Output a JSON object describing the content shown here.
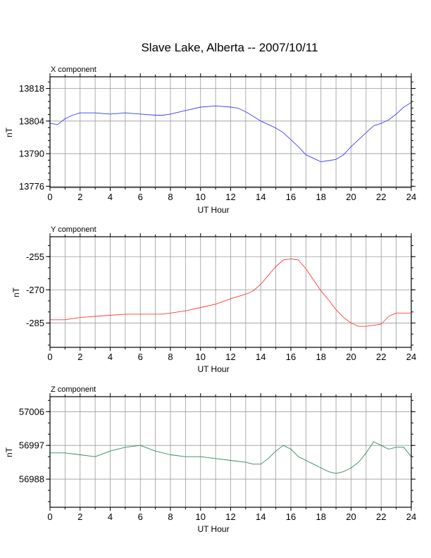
{
  "title": "Slave Lake, Alberta -- 2007/10/11",
  "chart_data": [
    {
      "type": "line",
      "title": "X component",
      "xlabel": "UT Hour",
      "ylabel": "nT",
      "xlim": [
        0,
        24
      ],
      "ylim": [
        13775.5,
        13823
      ],
      "xticks": [
        0,
        2,
        4,
        6,
        8,
        10,
        12,
        14,
        16,
        18,
        20,
        22,
        24
      ],
      "xtick_labels": [
        "0",
        "2",
        "4",
        "6",
        "8",
        "10",
        "12",
        "14",
        "16",
        "18",
        "20",
        "22",
        "24"
      ],
      "yticks": [
        13776,
        13790,
        13804,
        13818
      ],
      "ytick_labels": [
        "13776",
        "13790",
        "13804",
        "13818"
      ],
      "grid": true,
      "color": "#3a3aff",
      "series": [
        {
          "x": [
            0,
            0.5,
            1,
            1.5,
            2,
            3,
            4,
            5,
            6,
            7,
            7.5,
            8,
            9,
            10,
            11,
            12,
            12.5,
            13,
            14,
            15,
            15.5,
            16,
            16.5,
            17,
            17.5,
            18,
            18.5,
            19,
            19.5,
            20,
            20.5,
            21,
            21.5,
            22,
            22.5,
            23,
            23.5,
            24
          ],
          "y": [
            13803,
            13802.5,
            13805,
            13806.5,
            13807.5,
            13807.5,
            13807,
            13807.5,
            13807,
            13806.5,
            13806.5,
            13807,
            13808.5,
            13810,
            13810.5,
            13810,
            13809.5,
            13808,
            13804,
            13801,
            13799,
            13796,
            13793,
            13789.5,
            13788,
            13786.5,
            13787,
            13787.5,
            13789.5,
            13793,
            13796,
            13799,
            13802,
            13803,
            13804.5,
            13807,
            13810,
            13812
          ]
        }
      ]
    },
    {
      "type": "line",
      "title": "Y component",
      "xlabel": "UT Hour",
      "ylabel": "nT",
      "xlim": [
        0,
        24
      ],
      "ylim": [
        -296,
        -246
      ],
      "xticks": [
        0,
        2,
        4,
        6,
        8,
        10,
        12,
        14,
        16,
        18,
        20,
        22,
        24
      ],
      "xtick_labels": [
        "0",
        "2",
        "4",
        "6",
        "8",
        "10",
        "12",
        "14",
        "16",
        "18",
        "20",
        "22",
        "24"
      ],
      "yticks": [
        -255,
        -270,
        -285
      ],
      "ytick_labels": [
        "-255",
        "-270",
        "-285"
      ],
      "grid": true,
      "color": "#ff3a3a",
      "series": [
        {
          "x": [
            0,
            1,
            2,
            3,
            4,
            5,
            6,
            7,
            7.5,
            8,
            8.5,
            9,
            10,
            11,
            12,
            13,
            13.5,
            14,
            14.5,
            15,
            15.5,
            16,
            16.5,
            17,
            17.5,
            18,
            18.5,
            19,
            19.5,
            20,
            20.5,
            21,
            21.5,
            22,
            22.5,
            23,
            23.5,
            24
          ],
          "y": [
            -283.5,
            -283.5,
            -282.5,
            -282,
            -281.5,
            -281,
            -281,
            -281,
            -281,
            -280.5,
            -280,
            -279.5,
            -278,
            -276.5,
            -274,
            -272,
            -270.5,
            -267.5,
            -263.5,
            -259.5,
            -256.5,
            -256,
            -256.5,
            -260.5,
            -265.5,
            -270.5,
            -274.5,
            -279,
            -282.5,
            -285,
            -286.5,
            -286.5,
            -286,
            -285.5,
            -282,
            -280.5,
            -280.5,
            -280.5
          ]
        }
      ]
    },
    {
      "type": "line",
      "title": "Z component",
      "xlabel": "UT Hour",
      "ylabel": "nT",
      "xlim": [
        0,
        24
      ],
      "ylim": [
        56980.5,
        57010
      ],
      "xticks": [
        0,
        2,
        4,
        6,
        8,
        10,
        12,
        14,
        16,
        18,
        20,
        22,
        24
      ],
      "xtick_labels": [
        "0",
        "2",
        "4",
        "6",
        "8",
        "10",
        "12",
        "14",
        "16",
        "18",
        "20",
        "22",
        "24"
      ],
      "yticks": [
        57006,
        56997,
        56988
      ],
      "ytick_labels": [
        "57006",
        "56997",
        "56988"
      ],
      "grid": true,
      "color": "#2e8b57",
      "series": [
        {
          "x": [
            0,
            1,
            2,
            3,
            4,
            5,
            6,
            7,
            7.5,
            8,
            9,
            10,
            11,
            12,
            13,
            13.5,
            14,
            14.5,
            15,
            15.5,
            16,
            16.5,
            17,
            17.5,
            18,
            18.5,
            19,
            19.5,
            20,
            20.5,
            21,
            21.5,
            22,
            22.5,
            23,
            23.5,
            24
          ],
          "y": [
            56995,
            56995,
            56994.5,
            56994,
            56995.5,
            56996.5,
            56997,
            56995.5,
            56995,
            56994.5,
            56994,
            56994,
            56993.5,
            56993,
            56992.5,
            56992,
            56992,
            56993.5,
            56995.5,
            56997,
            56996,
            56994,
            56993,
            56992,
            56991,
            56990,
            56989.5,
            56990,
            56991,
            56992.5,
            56995,
            56998,
            56997,
            56996,
            56996.5,
            56996.5,
            56994
          ]
        }
      ]
    }
  ]
}
